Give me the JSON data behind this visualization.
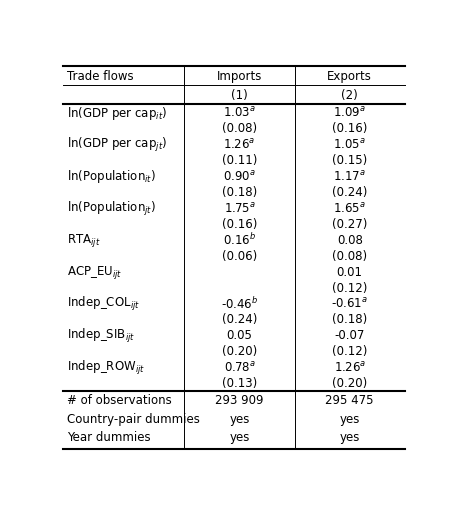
{
  "rows": [
    {
      "label": "ln(GDP per cap$_{it}$)",
      "col1": "1.03$^{a}$",
      "col2": "1.09$^{a}$",
      "is_value": true
    },
    {
      "label": "",
      "col1": "(0.08)",
      "col2": "(0.16)",
      "is_value": false
    },
    {
      "label": "ln(GDP per cap$_{jt}$)",
      "col1": "1.26$^{a}$",
      "col2": "1.05$^{a}$",
      "is_value": true
    },
    {
      "label": "",
      "col1": "(0.11)",
      "col2": "(0.15)",
      "is_value": false
    },
    {
      "label": "ln(Population$_{it}$)",
      "col1": "0.90$^{a}$",
      "col2": "1.17$^{a}$",
      "is_value": true
    },
    {
      "label": "",
      "col1": "(0.18)",
      "col2": "(0.24)",
      "is_value": false
    },
    {
      "label": "ln(Population$_{jt}$)",
      "col1": "1.75$^{a}$",
      "col2": "1.65$^{a}$",
      "is_value": true
    },
    {
      "label": "",
      "col1": "(0.16)",
      "col2": "(0.27)",
      "is_value": false
    },
    {
      "label": "RTA$_{ijt}$",
      "col1": "0.16$^{b}$",
      "col2": "0.08",
      "is_value": true
    },
    {
      "label": "",
      "col1": "(0.06)",
      "col2": "(0.08)",
      "is_value": false
    },
    {
      "label": "ACP_EU$_{ijt}$",
      "col1": "",
      "col2": "0.01",
      "is_value": true
    },
    {
      "label": "",
      "col1": "",
      "col2": "(0.12)",
      "is_value": false
    },
    {
      "label": "Indep_COL$_{ijt}$",
      "col1": "-0.46$^{b}$",
      "col2": "-0.61$^{a}$",
      "is_value": true
    },
    {
      "label": "",
      "col1": "(0.24)",
      "col2": "(0.18)",
      "is_value": false
    },
    {
      "label": "Indep_SIB$_{ijt}$",
      "col1": "0.05",
      "col2": "-0.07",
      "is_value": true
    },
    {
      "label": "",
      "col1": "(0.20)",
      "col2": "(0.12)",
      "is_value": false
    },
    {
      "label": "Indep_ROW$_{ijt}$",
      "col1": "0.78$^{a}$",
      "col2": "1.26$^{a}$",
      "is_value": true
    },
    {
      "label": "",
      "col1": "(0.13)",
      "col2": "(0.20)",
      "is_value": false
    }
  ],
  "footer_rows": [
    {
      "label": "# of observations",
      "col1": "293 909",
      "col2": "295 475"
    },
    {
      "label": "Country-pair dummies",
      "col1": "yes",
      "col2": "yes"
    },
    {
      "label": "Year dummies",
      "col1": "yes",
      "col2": "yes"
    }
  ],
  "font_size": 8.5,
  "bg_color": "#ffffff",
  "text_color": "#000000",
  "line_color": "#000000",
  "col_split1": 0.355,
  "col_split2": 0.678
}
